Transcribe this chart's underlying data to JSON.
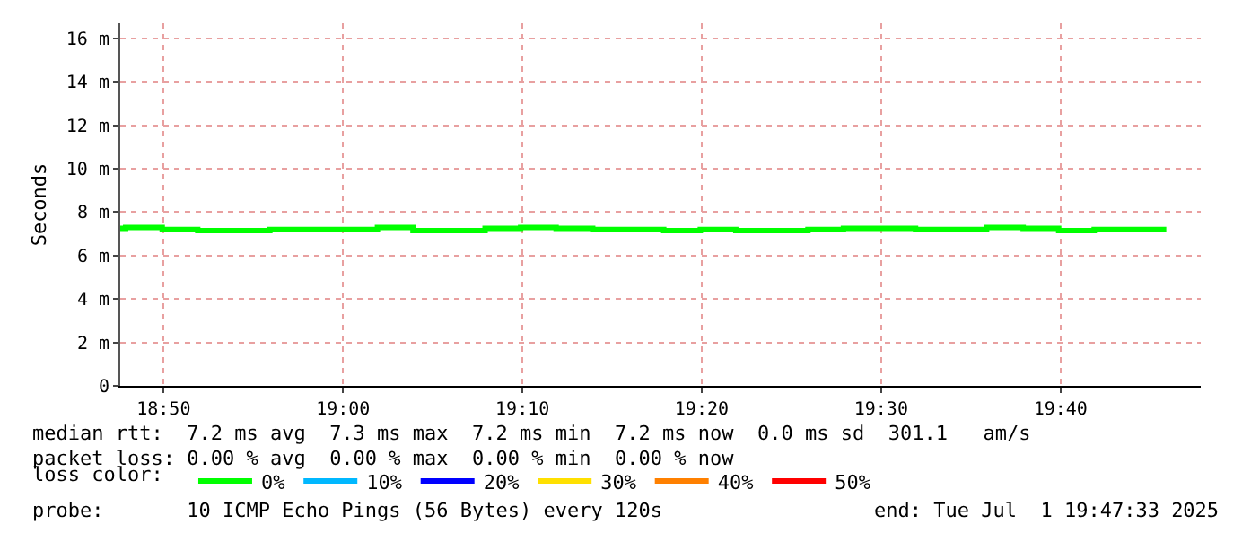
{
  "chart_data": {
    "type": "step",
    "ylabel": "Seconds",
    "legend_title": "loss color:",
    "x": [
      18.793,
      18.798,
      18.832,
      18.865,
      18.932,
      18.998,
      19.032,
      19.065,
      19.132,
      19.165,
      19.198,
      19.232,
      19.298,
      19.332,
      19.365,
      19.432,
      19.465,
      19.498,
      19.532,
      19.565,
      19.598,
      19.632,
      19.665,
      19.698,
      19.732,
      19.765
    ],
    "series": [
      {
        "name": "0%",
        "color": "#00ff00",
        "values": [
          7.25,
          7.3,
          7.2,
          7.15,
          7.2,
          7.2,
          7.3,
          7.15,
          7.25,
          7.3,
          7.25,
          7.2,
          7.15,
          7.2,
          7.15,
          7.2,
          7.25,
          7.25,
          7.2,
          7.2,
          7.3,
          7.25,
          7.15,
          7.2,
          7.2,
          7.2
        ]
      },
      {
        "name": "10%",
        "color": "#00b8ff",
        "values": [
          null,
          null,
          null,
          null,
          null,
          null,
          null,
          null,
          null,
          null,
          null,
          null,
          null,
          null,
          null,
          null,
          null,
          null,
          null,
          null,
          null,
          null,
          null,
          null,
          null,
          null
        ]
      },
      {
        "name": "20%",
        "color": "#0000ff",
        "values": [
          null,
          null,
          null,
          null,
          null,
          null,
          null,
          null,
          null,
          null,
          null,
          null,
          null,
          null,
          null,
          null,
          null,
          null,
          null,
          null,
          null,
          null,
          null,
          null,
          null,
          null
        ]
      },
      {
        "name": "30%",
        "color": "#ffe000",
        "values": [
          null,
          null,
          null,
          null,
          null,
          null,
          null,
          null,
          null,
          null,
          null,
          null,
          null,
          null,
          null,
          null,
          null,
          null,
          null,
          null,
          null,
          null,
          null,
          null,
          null,
          null
        ]
      },
      {
        "name": "40%",
        "color": "#ff8000",
        "values": [
          null,
          null,
          null,
          null,
          null,
          null,
          null,
          null,
          null,
          null,
          null,
          null,
          null,
          null,
          null,
          null,
          null,
          null,
          null,
          null,
          null,
          null,
          null,
          null,
          null,
          null
        ]
      },
      {
        "name": "50%",
        "color": "#ff0000",
        "values": [
          null,
          null,
          null,
          null,
          null,
          null,
          null,
          null,
          null,
          null,
          null,
          null,
          null,
          null,
          null,
          null,
          null,
          null,
          null,
          null,
          null,
          null,
          null,
          null,
          null,
          null
        ]
      }
    ],
    "xlim": [
      18.793,
      19.797
    ],
    "xticks": [
      {
        "value": 18.8333,
        "label": "18:50"
      },
      {
        "value": 19.0,
        "label": "19:00"
      },
      {
        "value": 19.1667,
        "label": "19:10"
      },
      {
        "value": 19.3333,
        "label": "19:20"
      },
      {
        "value": 19.5,
        "label": "19:30"
      },
      {
        "value": 19.6667,
        "label": "19:40"
      }
    ],
    "ylim": [
      0,
      16.7
    ],
    "yticks": [
      {
        "value": 0,
        "label": "0"
      },
      {
        "value": 2,
        "label": "2 m"
      },
      {
        "value": 4,
        "label": "4 m"
      },
      {
        "value": 6,
        "label": "6 m"
      },
      {
        "value": 8,
        "label": "8 m"
      },
      {
        "value": 10,
        "label": "10 m"
      },
      {
        "value": 12,
        "label": "12 m"
      },
      {
        "value": 14,
        "label": "14 m"
      },
      {
        "value": 16,
        "label": "16 m"
      }
    ],
    "grid": true,
    "legend": "bottom",
    "line_style": "solid",
    "annotations": [
      "median rtt:  7.2 ms avg  7.3 ms max  7.2 ms min  7.2 ms now  0.0 ms sd  301.1   am/s",
      "packet loss: 0.00 % avg  0.00 % max  0.00 % min  0.00 % now",
      "probe:       10 ICMP Echo Pings (56 Bytes) every 120s",
      "end: Tue Jul  1 19:47:33 2025"
    ]
  }
}
